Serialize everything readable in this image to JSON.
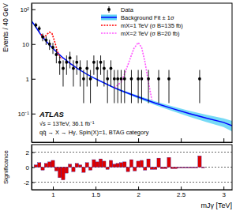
{
  "chart_data": [
    {
      "type": "scatter",
      "ylabel": "Events / 40 GeV",
      "annotations": [
        "ATLAS",
        "√s = 13TeV, 36.1 fb⁻¹",
        "qq̄ → X → Hγ, Spin(X)=1, BTAG category"
      ],
      "xlim": [
        0.75,
        3.1
      ],
      "xticks": [
        1,
        1.5,
        2,
        2.5,
        3
      ],
      "ylim": [
        0.015,
        150
      ],
      "yticks": [
        {
          "value": 0.1,
          "label": "10⁻¹"
        },
        1,
        10,
        {
          "value": 100,
          "label": "10²"
        }
      ],
      "log": "y",
      "tick_labels": "y",
      "legend": "upper right",
      "series": [
        {
          "name": "Data",
          "type": "scatter",
          "color": "#000000",
          "marker": "circle",
          "x": [
            0.8,
            0.84,
            0.88,
            0.92,
            0.96,
            1,
            1.04,
            1.08,
            1.12,
            1.16,
            1.2,
            1.24,
            1.28,
            1.32,
            1.36,
            1.4,
            1.44,
            1.48,
            1.52,
            1.56,
            1.6,
            1.64,
            1.68,
            1.72,
            1.76,
            1.8,
            1.84,
            1.92,
            2,
            2.04,
            2.12,
            2.24,
            2.36,
            2.72
          ],
          "values": [
            35,
            28,
            16,
            13,
            10,
            8,
            5,
            3,
            2,
            3,
            4,
            2,
            3,
            2,
            1,
            2,
            1,
            3,
            2,
            3,
            2,
            1,
            2,
            1,
            1,
            1,
            1,
            1,
            1,
            1,
            1,
            1,
            1,
            1
          ],
          "errors": [
            5.9,
            5.3,
            4,
            3.6,
            3.2,
            2.8,
            2.2,
            1.7,
            1.4,
            1.7,
            2,
            1.4,
            1.7,
            1.4,
            0.8,
            1.4,
            0.8,
            1.7,
            1.4,
            1.7,
            1.4,
            0.8,
            1.4,
            0.8,
            0.8,
            0.8,
            0.8,
            0.8,
            0.8,
            0.8,
            0.8,
            0.8,
            0.8,
            0.8
          ]
        },
        {
          "name": "Background Fit ± 1σ",
          "type": "line",
          "color": "#0000ff",
          "line_style": "solid",
          "x": [
            0.75,
            0.8,
            0.85,
            0.9,
            0.95,
            1,
            1.1,
            1.2,
            1.3,
            1.4,
            1.5,
            1.6,
            1.7,
            1.8,
            1.9,
            2,
            2.2,
            2.4,
            2.6,
            2.8,
            3,
            3.1
          ],
          "values": [
            46,
            31,
            20,
            14,
            10,
            7.5,
            4.4,
            2.8,
            1.9,
            1.35,
            1.0,
            0.76,
            0.58,
            0.46,
            0.37,
            0.3,
            0.2,
            0.14,
            0.1,
            0.074,
            0.056,
            0.045
          ],
          "band_low": [
            42,
            29,
            19,
            13.3,
            9.6,
            7.2,
            4.2,
            2.7,
            1.83,
            1.29,
            0.95,
            0.72,
            0.55,
            0.43,
            0.34,
            0.27,
            0.175,
            0.118,
            0.081,
            0.057,
            0.041,
            0.031
          ],
          "band_high": [
            50,
            33,
            21,
            14.7,
            10.4,
            7.8,
            4.6,
            2.9,
            1.97,
            1.41,
            1.05,
            0.8,
            0.61,
            0.49,
            0.4,
            0.33,
            0.225,
            0.162,
            0.12,
            0.093,
            0.073,
            0.062
          ]
        },
        {
          "name": "mX=1 TeV (σ B=135 fb)",
          "type": "line",
          "color": "#ff0000",
          "line_style": "dotted",
          "x": [
            0.86,
            0.9,
            0.93,
            0.96,
            0.99,
            1.02,
            1.05,
            1.08,
            1.11
          ],
          "values": [
            19,
            16,
            19,
            22,
            20,
            12,
            6.5,
            4.2,
            3.8
          ]
        },
        {
          "name": "mX=2 TeV (σ B=20 fb)",
          "type": "line",
          "color": "#ff55ff",
          "line_style": "dotted",
          "x": [
            1.72,
            1.8,
            1.85,
            1.9,
            1.95,
            2,
            2.04,
            2.08,
            2.12,
            2.16
          ],
          "values": [
            0.55,
            0.8,
            1.6,
            3.5,
            7.5,
            11,
            8,
            3,
            0.8,
            0.25
          ]
        }
      ]
    },
    {
      "type": "histogram",
      "ylabel": "Significance",
      "xlabel": "mJγ [TeV]",
      "xlim": [
        0.75,
        3.1
      ],
      "xticks": [
        1,
        1.5,
        2,
        2.5,
        3
      ],
      "ylim": [
        -3,
        3
      ],
      "yticks": [
        -2,
        0,
        2
      ],
      "grid": true,
      "color": "#dd0000",
      "bins": [
        0.78,
        0.82,
        0.86,
        0.9,
        0.94,
        0.98,
        1.02,
        1.06,
        1.1,
        1.14,
        1.18,
        1.22,
        1.26,
        1.3,
        1.34,
        1.38,
        1.42,
        1.46,
        1.5,
        1.54,
        1.58,
        1.62,
        1.66,
        1.7,
        1.74,
        1.78,
        1.82,
        1.86,
        1.9,
        1.94,
        1.98,
        2.02,
        2.06,
        2.1,
        2.14,
        2.18,
        2.22,
        2.26,
        2.3,
        2.34,
        2.38,
        2.42,
        2.46,
        2.5,
        2.54,
        2.58,
        2.62,
        2.66,
        2.7,
        2.74,
        2.78
      ],
      "values": [
        0.3,
        0.6,
        -0.4,
        0.5,
        0.7,
        0.9,
        -0.5,
        -1.4,
        -1.7,
        -0.8,
        0.4,
        -0.6,
        0.5,
        0.3,
        -0.7,
        0.6,
        -0.4,
        1.0,
        0.7,
        1.1,
        0.8,
        -0.3,
        0.9,
        0.4,
        0.5,
        0.6,
        0.7,
        -0.6,
        1.0,
        -0.5,
        0.8,
        0.9,
        -0.4,
        1.1,
        -0.3,
        -0.3,
        1.2,
        -0.2,
        -0.2,
        1.3,
        -0.2,
        -0.2,
        -0.1,
        -0.1,
        -0.1,
        -0.1,
        -0.1,
        -0.1,
        1.5,
        -0.1
      ]
    }
  ]
}
